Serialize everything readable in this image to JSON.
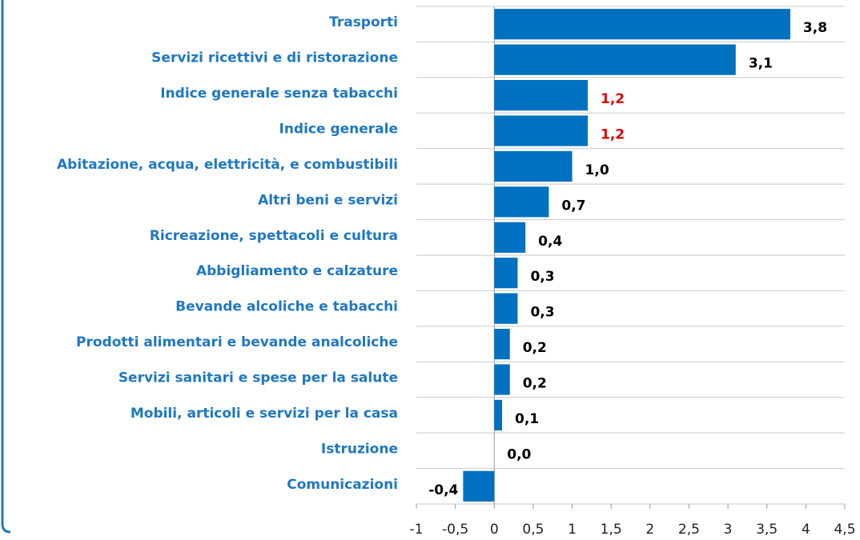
{
  "chart_data": {
    "type": "hbar",
    "categories": [
      "Trasporti",
      "Servizi ricettivi e di ristorazione",
      "Indice generale senza tabacchi",
      "Indice generale",
      "Abitazione, acqua, elettricità, e combustibili",
      "Altri beni e servizi",
      "Ricreazione, spettacoli e cultura",
      "Abbigliamento e calzature",
      "Bevande alcoliche e tabacchi",
      "Prodotti alimentari e bevande analcoliche",
      "Servizi sanitari e spese per la salute",
      "Mobili, articoli e servizi per la casa",
      "Istruzione",
      "Comunicazioni"
    ],
    "values": [
      3.8,
      3.1,
      1.2,
      1.2,
      1.0,
      0.7,
      0.4,
      0.3,
      0.3,
      0.2,
      0.2,
      0.1,
      0.0,
      -0.4
    ],
    "value_labels": [
      "3,8",
      "3,1",
      "1,2",
      "1,2",
      "1,0",
      "0,7",
      "0,4",
      "0,3",
      "0,3",
      "0,2",
      "0,2",
      "0,1",
      "0,0",
      "-0,4"
    ],
    "value_label_colors": [
      "#000000",
      "#000000",
      "#e00000",
      "#e00000",
      "#000000",
      "#000000",
      "#000000",
      "#000000",
      "#000000",
      "#000000",
      "#000000",
      "#000000",
      "#000000",
      "#000000"
    ],
    "color": "#0070c0",
    "xlim": [
      -1,
      4.5
    ],
    "xticks": [
      -1,
      {
        "value": -0.5,
        "label": "-0,5"
      },
      0,
      {
        "value": 0.5,
        "label": "0,5"
      },
      1,
      {
        "value": 1.5,
        "label": "1,5"
      },
      2,
      {
        "value": 2.5,
        "label": "2,5"
      },
      3,
      {
        "value": 3.5,
        "label": "3,5"
      },
      4,
      {
        "value": 4.5,
        "label": "4,5"
      }
    ]
  }
}
